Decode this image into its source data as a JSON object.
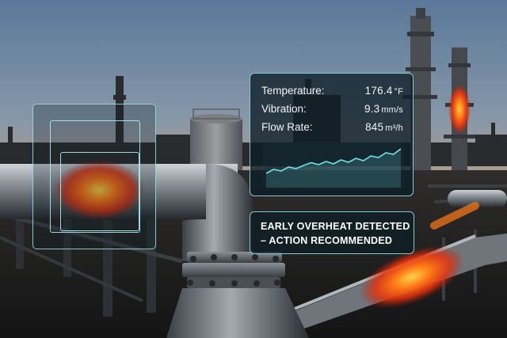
{
  "overlay": {
    "readings": [
      {
        "label": "Temperature:",
        "value": "176.4",
        "unit": "°F"
      },
      {
        "label": "Vibration:",
        "value": "9.3",
        "unit": "mm/s"
      },
      {
        "label": "Flow Rate:",
        "value": "845",
        "unit": "m³/h"
      }
    ],
    "alert": {
      "line1": "EARLY OVERHEAT DETECTED",
      "line2": "– ACTION RECOMMENDED"
    }
  },
  "sparkline": {
    "values": [
      0.28,
      0.38,
      0.34,
      0.44,
      0.4,
      0.48,
      0.55,
      0.5,
      0.58,
      0.52,
      0.62,
      0.56,
      0.66,
      0.6,
      0.72,
      0.68,
      0.8,
      0.76,
      0.9
    ],
    "color": "#6fe3ea"
  },
  "colors": {
    "accent": "#96e4ec",
    "heat": "#ff5a12"
  }
}
